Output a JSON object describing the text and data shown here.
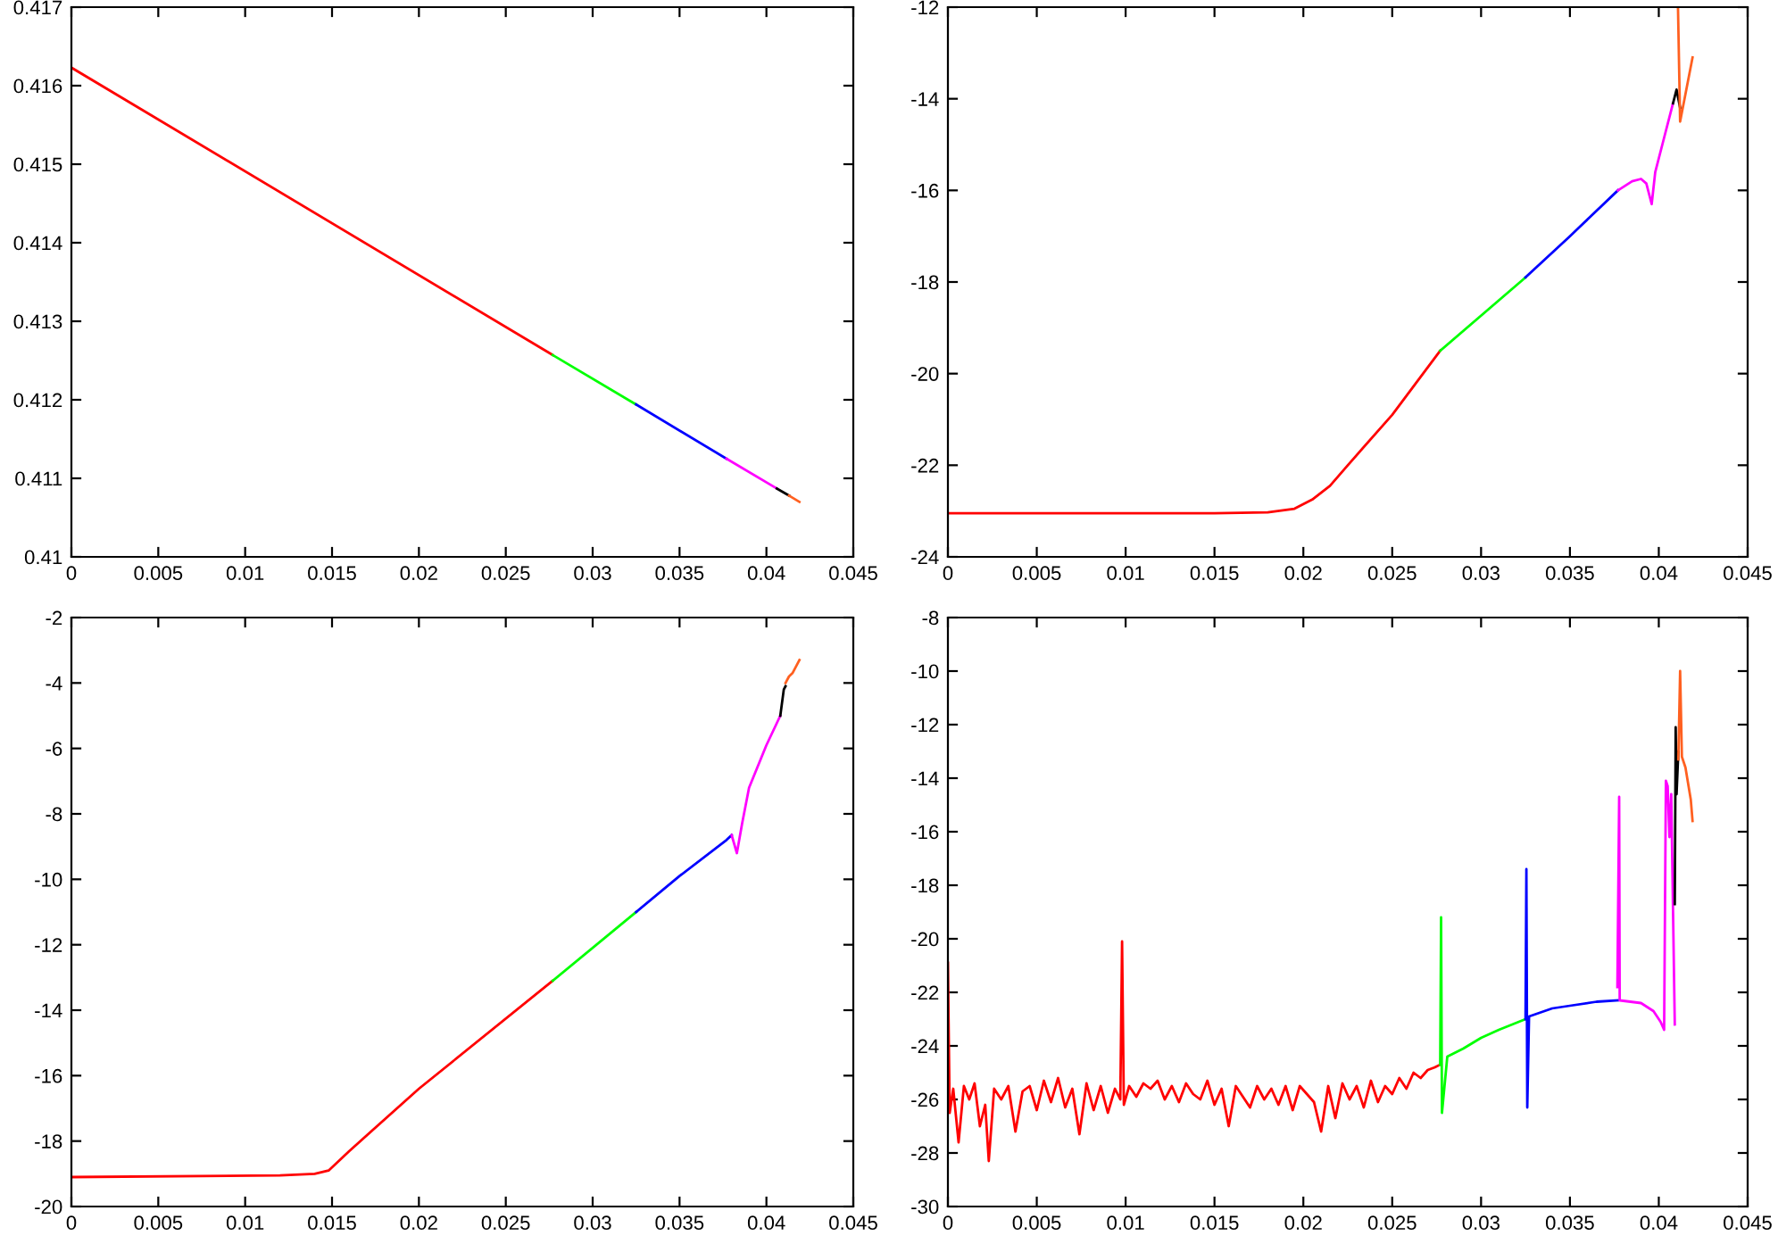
{
  "chart_data": [
    {
      "type": "line",
      "xlim": [
        0,
        0.045
      ],
      "xticks": [
        0,
        0.005,
        0.01,
        0.015,
        0.02,
        0.025,
        0.03,
        0.035,
        0.04,
        0.045
      ],
      "ylim": [
        0.41,
        0.417
      ],
      "yticks": [
        0.41,
        0.411,
        0.412,
        0.413,
        0.414,
        0.415,
        0.416,
        0.417
      ],
      "series": [
        {
          "color": "#ff0000",
          "x": [
            0,
            0.0277
          ],
          "values": [
            0.41623,
            0.41257
          ]
        },
        {
          "color": "#00ff00",
          "x": [
            0.0277,
            0.0325
          ],
          "values": [
            0.41257,
            0.41194
          ]
        },
        {
          "color": "#0000ff",
          "x": [
            0.0325,
            0.0377
          ],
          "values": [
            0.41194,
            0.41125
          ]
        },
        {
          "color": "#ff00ff",
          "x": [
            0.0377,
            0.0406
          ],
          "values": [
            0.41125,
            0.41087
          ]
        },
        {
          "color": "#000000",
          "x": [
            0.0406,
            0.0413
          ],
          "values": [
            0.41087,
            0.41078
          ]
        },
        {
          "color": "#ff6020",
          "x": [
            0.0413,
            0.0419
          ],
          "values": [
            0.41078,
            0.4107
          ]
        }
      ]
    },
    {
      "type": "line",
      "xlim": [
        0,
        0.045
      ],
      "xticks": [
        0,
        0.005,
        0.01,
        0.015,
        0.02,
        0.025,
        0.03,
        0.035,
        0.04,
        0.045
      ],
      "ylim": [
        -24,
        -12
      ],
      "yticks": [
        -24,
        -22,
        -20,
        -18,
        -16,
        -14,
        -12
      ],
      "series": [
        {
          "color": "#ff0000",
          "x": [
            0,
            0.015,
            0.018,
            0.0195,
            0.0205,
            0.0215,
            0.0225,
            0.025,
            0.0277
          ],
          "values": [
            -23.05,
            -23.05,
            -23.03,
            -22.95,
            -22.75,
            -22.45,
            -22.0,
            -20.9,
            -19.5
          ]
        },
        {
          "color": "#00ff00",
          "x": [
            0.0277,
            0.0325
          ],
          "values": [
            -19.5,
            -17.9
          ]
        },
        {
          "color": "#0000ff",
          "x": [
            0.0325,
            0.035,
            0.0377
          ],
          "values": [
            -17.9,
            -17.0,
            -16.0
          ]
        },
        {
          "color": "#ff00ff",
          "x": [
            0.0377,
            0.0385,
            0.039,
            0.0393,
            0.0396,
            0.0398,
            0.0402,
            0.0408
          ],
          "values": [
            -16.0,
            -15.8,
            -15.75,
            -15.85,
            -16.3,
            -15.6,
            -15.0,
            -14.1
          ]
        },
        {
          "color": "#000000",
          "x": [
            0.0408,
            0.041,
            0.0412
          ],
          "values": [
            -14.1,
            -13.8,
            -14.2
          ]
        },
        {
          "color": "#ff6020",
          "x": [
            0.04108,
            0.0412,
            0.0419
          ],
          "values": [
            -12.0,
            -14.5,
            -13.1
          ]
        }
      ]
    },
    {
      "type": "line",
      "xlim": [
        0,
        0.045
      ],
      "xticks": [
        0,
        0.005,
        0.01,
        0.015,
        0.02,
        0.025,
        0.03,
        0.035,
        0.04,
        0.045
      ],
      "ylim": [
        -20,
        -2
      ],
      "yticks": [
        -20,
        -18,
        -16,
        -14,
        -12,
        -10,
        -8,
        -6,
        -4,
        -2
      ],
      "series": [
        {
          "color": "#ff0000",
          "x": [
            0,
            0.012,
            0.014,
            0.0148,
            0.016,
            0.02,
            0.0277
          ],
          "values": [
            -19.1,
            -19.05,
            -19.0,
            -18.9,
            -18.3,
            -16.4,
            -13.1
          ]
        },
        {
          "color": "#00ff00",
          "x": [
            0.0277,
            0.0325
          ],
          "values": [
            -13.1,
            -11.0
          ]
        },
        {
          "color": "#0000ff",
          "x": [
            0.0325,
            0.035,
            0.0377,
            0.038
          ],
          "values": [
            -11.0,
            -9.9,
            -8.8,
            -8.65
          ]
        },
        {
          "color": "#ff00ff",
          "x": [
            0.038,
            0.0383,
            0.0386,
            0.039,
            0.04,
            0.0408
          ],
          "values": [
            -8.65,
            -9.2,
            -8.3,
            -7.2,
            -5.9,
            -5.0
          ]
        },
        {
          "color": "#000000",
          "x": [
            0.0408,
            0.041,
            0.0411
          ],
          "values": [
            -5.0,
            -4.2,
            -4.1
          ]
        },
        {
          "color": "#ff6020",
          "x": [
            0.0411,
            0.0413,
            0.0415,
            0.0419
          ],
          "values": [
            -4.0,
            -3.8,
            -3.7,
            -3.3
          ]
        }
      ]
    },
    {
      "type": "line",
      "xlim": [
        0,
        0.045
      ],
      "xticks": [
        0,
        0.005,
        0.01,
        0.015,
        0.02,
        0.025,
        0.03,
        0.035,
        0.04,
        0.045
      ],
      "ylim": [
        -30,
        -8
      ],
      "yticks": [
        -30,
        -28,
        -26,
        -24,
        -22,
        -20,
        -18,
        -16,
        -14,
        -12,
        -10,
        -8
      ],
      "series": [
        {
          "color": "#ff0000",
          "x": [
            0,
            0.0001,
            0.0003,
            0.0006,
            0.0009,
            0.0012,
            0.0015,
            0.0018,
            0.0021,
            0.0023,
            0.0026,
            0.003,
            0.0034,
            0.0038,
            0.0042,
            0.0046,
            0.005,
            0.0054,
            0.0058,
            0.0062,
            0.0066,
            0.007,
            0.0074,
            0.0078,
            0.0082,
            0.0086,
            0.009,
            0.0094,
            0.0097,
            0.0098,
            0.0099,
            0.0102,
            0.0106,
            0.011,
            0.0114,
            0.0118,
            0.0122,
            0.0126,
            0.013,
            0.0134,
            0.0138,
            0.0142,
            0.0146,
            0.015,
            0.0154,
            0.0158,
            0.0162,
            0.0166,
            0.017,
            0.0174,
            0.0178,
            0.0182,
            0.0186,
            0.019,
            0.0194,
            0.0198,
            0.0202,
            0.0206,
            0.021,
            0.0214,
            0.0218,
            0.0222,
            0.0226,
            0.023,
            0.0234,
            0.0238,
            0.0242,
            0.0246,
            0.025,
            0.0254,
            0.0258,
            0.0262,
            0.0266,
            0.027,
            0.0274,
            0.0277
          ],
          "values": [
            -20.9,
            -26.5,
            -25.6,
            -27.6,
            -25.5,
            -26.0,
            -25.4,
            -27.0,
            -26.2,
            -28.3,
            -25.6,
            -26.0,
            -25.5,
            -27.2,
            -25.7,
            -25.5,
            -26.4,
            -25.3,
            -26.1,
            -25.2,
            -26.3,
            -25.6,
            -27.3,
            -25.4,
            -26.4,
            -25.5,
            -26.5,
            -25.6,
            -26.0,
            -20.1,
            -26.2,
            -25.5,
            -25.9,
            -25.4,
            -25.6,
            -25.3,
            -26.0,
            -25.5,
            -26.1,
            -25.4,
            -25.8,
            -26.0,
            -25.3,
            -26.2,
            -25.6,
            -27.0,
            -25.5,
            -25.9,
            -26.3,
            -25.5,
            -26.0,
            -25.6,
            -26.2,
            -25.5,
            -26.4,
            -25.5,
            -25.8,
            -26.1,
            -27.2,
            -25.5,
            -26.7,
            -25.4,
            -26.0,
            -25.5,
            -26.3,
            -25.3,
            -26.1,
            -25.5,
            -25.8,
            -25.2,
            -25.6,
            -25.0,
            -25.2,
            -24.9,
            -24.8,
            -24.7
          ]
        },
        {
          "color": "#00ff00",
          "x": [
            0.0277,
            0.02775,
            0.0278,
            0.0281,
            0.029,
            0.03,
            0.031,
            0.0325
          ],
          "values": [
            -24.7,
            -19.2,
            -26.5,
            -24.4,
            -24.1,
            -23.7,
            -23.4,
            -23.0
          ]
        },
        {
          "color": "#0000ff",
          "x": [
            0.0325,
            0.03255,
            0.0326,
            0.0327,
            0.034,
            0.035,
            0.0365,
            0.0377
          ],
          "values": [
            -23.0,
            -17.4,
            -26.3,
            -22.9,
            -22.6,
            -22.5,
            -22.35,
            -22.3
          ]
        },
        {
          "color": "#ff00ff",
          "x": [
            0.03767,
            0.03777,
            0.0378,
            0.039,
            0.0397,
            0.0401,
            0.0403,
            0.0404,
            0.0405,
            0.0406,
            0.0407,
            0.0409
          ],
          "values": [
            -21.8,
            -14.7,
            -22.3,
            -22.4,
            -22.7,
            -23.1,
            -23.4,
            -14.1,
            -14.3,
            -16.2,
            -14.6,
            -23.2
          ]
        },
        {
          "color": "#000000",
          "x": [
            0.0409,
            0.04095,
            0.041,
            0.0411
          ],
          "values": [
            -18.7,
            -12.1,
            -14.6,
            -13.0
          ]
        },
        {
          "color": "#ff6020",
          "x": [
            0.0411,
            0.0412,
            0.0413,
            0.0415,
            0.0418,
            0.0419
          ],
          "values": [
            -13.3,
            -10.0,
            -13.2,
            -13.6,
            -14.8,
            -15.6
          ]
        }
      ]
    }
  ]
}
